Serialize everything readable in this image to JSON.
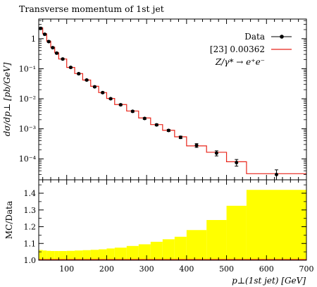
{
  "title": "Transverse momentum of 1st jet",
  "colors": {
    "data": "#000000",
    "mc": "#e8251a",
    "band": "#ffff00",
    "axis": "#000000"
  },
  "legend": {
    "entries": [
      {
        "label": "Data",
        "style": "data"
      },
      {
        "label": "[23] 0.00362",
        "style": "mc"
      },
      {
        "label": "Z/γ* → e⁺e⁻",
        "style": "text"
      }
    ]
  },
  "chart_data": [
    {
      "type": "line",
      "title": "Transverse momentum of 1st jet",
      "ylabel": "dσ/dp⊥ [pb/GeV]",
      "yscale": "log",
      "xlim": [
        30,
        700
      ],
      "ylim": [
        2e-05,
        4.5
      ],
      "yticks": [
        {
          "value": 0.0001,
          "label": "10⁻⁴"
        },
        {
          "value": 0.001,
          "label": "10⁻³"
        },
        {
          "value": 0.01,
          "label": "10⁻²"
        },
        {
          "value": 0.1,
          "label": "10⁻¹"
        },
        {
          "value": 1,
          "label": "1"
        }
      ],
      "bin_edges": [
        30,
        40,
        50,
        60,
        70,
        80,
        100,
        120,
        140,
        160,
        180,
        200,
        220,
        250,
        280,
        310,
        340,
        370,
        400,
        450,
        500,
        550,
        700
      ],
      "series": [
        {
          "name": "Data",
          "x": [
            35,
            45,
            55,
            65,
            75,
            90,
            110,
            130,
            150,
            170,
            190,
            210,
            235,
            265,
            295,
            325,
            355,
            385,
            425,
            475,
            525,
            625
          ],
          "y": [
            2.2,
            1.4,
            0.8,
            0.5,
            0.33,
            0.21,
            0.11,
            0.068,
            0.042,
            0.025,
            0.016,
            0.01,
            0.0063,
            0.0038,
            0.0022,
            0.00135,
            0.00088,
            0.00052,
            0.00028,
            0.000155,
            7.5e-05,
            3e-05
          ],
          "yerr_lo": [
            0.15,
            0.09,
            0.05,
            0.03,
            0.02,
            0.012,
            0.006,
            0.004,
            0.0025,
            0.0015,
            0.001,
            0.0006,
            0.0004,
            0.00025,
            0.00015,
            0.0001,
            7e-05,
            5e-05,
            4e-05,
            3e-05,
            1.8e-05,
            1e-05
          ],
          "yerr_hi": [
            0.15,
            0.09,
            0.05,
            0.03,
            0.02,
            0.012,
            0.006,
            0.004,
            0.0025,
            0.0015,
            0.001,
            0.0006,
            0.0004,
            0.00025,
            0.00015,
            0.0001,
            7e-05,
            5e-05,
            4e-05,
            3e-05,
            2e-05,
            1.3e-05
          ]
        },
        {
          "name": "[23] 0.00362",
          "values": [
            2.3,
            1.45,
            0.82,
            0.52,
            0.34,
            0.21,
            0.11,
            0.069,
            0.042,
            0.026,
            0.016,
            0.0102,
            0.0064,
            0.0039,
            0.0023,
            0.00138,
            0.00089,
            0.00054,
            0.00027,
            0.000165,
            8e-05,
            3.2e-05
          ]
        }
      ]
    },
    {
      "type": "area",
      "ylabel": "MC/Data",
      "xlabel": "p⊥(1st jet) [GeV]",
      "xlim": [
        30,
        700
      ],
      "ylim": [
        1.0,
        1.48
      ],
      "xticks": [
        100,
        200,
        300,
        400,
        500,
        600,
        700
      ],
      "yticks": [
        1.0,
        1.1,
        1.2,
        1.3,
        1.4
      ],
      "bin_edges": [
        30,
        40,
        50,
        60,
        70,
        80,
        100,
        120,
        140,
        160,
        180,
        200,
        220,
        250,
        280,
        310,
        340,
        370,
        400,
        450,
        500,
        550,
        700
      ],
      "series": [
        {
          "name": "MC/Data",
          "values": [
            1.061,
            1.058,
            1.056,
            1.055,
            1.055,
            1.055,
            1.056,
            1.058,
            1.06,
            1.062,
            1.065,
            1.07,
            1.075,
            1.085,
            1.095,
            1.11,
            1.125,
            1.14,
            1.18,
            1.24,
            1.325,
            1.42
          ]
        }
      ]
    }
  ]
}
